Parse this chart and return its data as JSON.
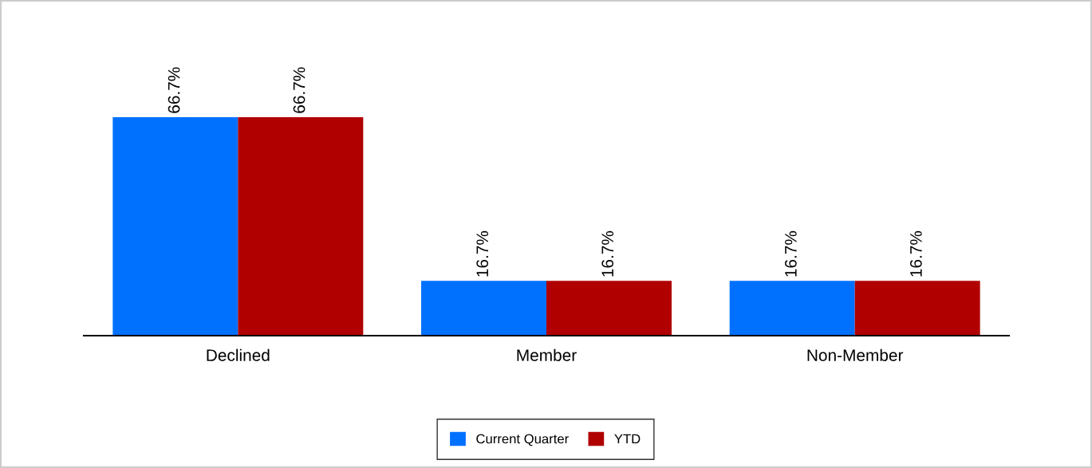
{
  "chart_data": {
    "type": "bar",
    "categories": [
      "Declined",
      "Member",
      "Non-Member"
    ],
    "series": [
      {
        "name": "Current Quarter",
        "color": "#0070ff",
        "values": [
          66.7,
          16.7,
          16.7
        ],
        "value_labels": [
          "66.7%",
          "16.7%",
          "16.7%"
        ]
      },
      {
        "name": "YTD",
        "color": "#b00000",
        "values": [
          66.7,
          16.7,
          16.7
        ],
        "value_labels": [
          "66.7%",
          "16.7%",
          "16.7%"
        ]
      }
    ],
    "grid": false,
    "legend": "bottom",
    "tick_labels": "x"
  }
}
